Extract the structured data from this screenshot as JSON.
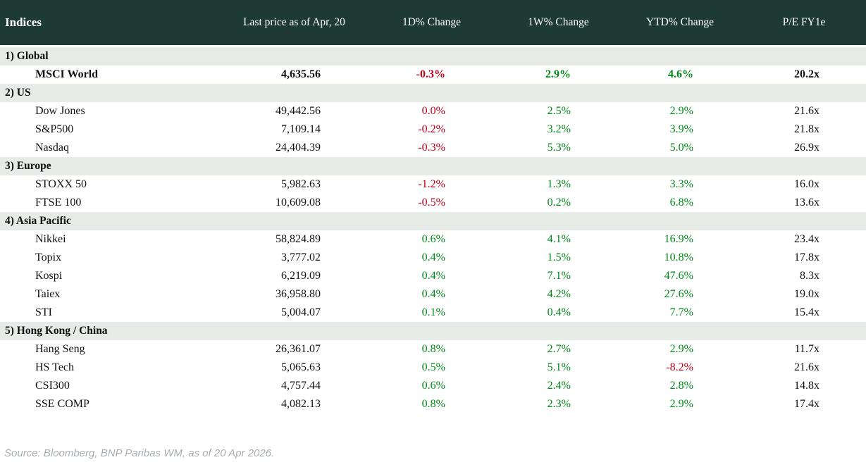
{
  "chart_data": {
    "type": "table",
    "title": "Indices",
    "columns": [
      "Indices",
      "Last price as of Apr, 20",
      "1D% Change",
      "1W% Change",
      "YTD% Change",
      "P/E FY1e"
    ],
    "sections": [
      {
        "label": "1) Global",
        "rows": [
          {
            "name": "MSCI World",
            "price": "4,635.56",
            "d1": "-0.3%",
            "w1": "2.9%",
            "ytd": "4.6%",
            "pe": "20.2x",
            "bold": true
          }
        ]
      },
      {
        "label": "2) US",
        "rows": [
          {
            "name": "Dow Jones",
            "price": "49,442.56",
            "d1": "0.0%",
            "w1": "2.5%",
            "ytd": "2.9%",
            "pe": "21.6x",
            "bold": false
          },
          {
            "name": "S&P500",
            "price": "7,109.14",
            "d1": "-0.2%",
            "w1": "3.2%",
            "ytd": "3.9%",
            "pe": "21.8x",
            "bold": false
          },
          {
            "name": "Nasdaq",
            "price": "24,404.39",
            "d1": "-0.3%",
            "w1": "5.3%",
            "ytd": "5.0%",
            "pe": "26.9x",
            "bold": false
          }
        ]
      },
      {
        "label": "3) Europe",
        "rows": [
          {
            "name": "STOXX 50",
            "price": "5,982.63",
            "d1": "-1.2%",
            "w1": "1.3%",
            "ytd": "3.3%",
            "pe": "16.0x",
            "bold": false
          },
          {
            "name": "FTSE 100",
            "price": "10,609.08",
            "d1": "-0.5%",
            "w1": "0.2%",
            "ytd": "6.8%",
            "pe": "13.6x",
            "bold": false
          }
        ]
      },
      {
        "label": "4) Asia Pacific",
        "rows": [
          {
            "name": "Nikkei",
            "price": "58,824.89",
            "d1": "0.6%",
            "w1": "4.1%",
            "ytd": "16.9%",
            "pe": "23.4x",
            "bold": false
          },
          {
            "name": "Topix",
            "price": "3,777.02",
            "d1": "0.4%",
            "w1": "1.5%",
            "ytd": "10.8%",
            "pe": "17.8x",
            "bold": false
          },
          {
            "name": "Kospi",
            "price": "6,219.09",
            "d1": "0.4%",
            "w1": "7.1%",
            "ytd": "47.6%",
            "pe": "8.3x",
            "bold": false
          },
          {
            "name": "Taiex",
            "price": "36,958.80",
            "d1": "0.4%",
            "w1": "4.2%",
            "ytd": "27.6%",
            "pe": "19.0x",
            "bold": false
          },
          {
            "name": "STI",
            "price": "5,004.07",
            "d1": "0.1%",
            "w1": "0.4%",
            "ytd": "7.7%",
            "pe": "15.4x",
            "bold": false
          }
        ]
      },
      {
        "label": "5) Hong Kong / China",
        "rows": [
          {
            "name": "Hang Seng",
            "price": "26,361.07",
            "d1": "0.8%",
            "w1": "2.7%",
            "ytd": "2.9%",
            "pe": "11.7x",
            "bold": false
          },
          {
            "name": "HS Tech",
            "price": "5,065.63",
            "d1": "0.5%",
            "w1": "5.1%",
            "ytd": "-8.2%",
            "pe": "21.6x",
            "bold": false
          },
          {
            "name": "CSI300",
            "price": "4,757.44",
            "d1": "0.6%",
            "w1": "2.4%",
            "ytd": "2.8%",
            "pe": "14.8x",
            "bold": false
          },
          {
            "name": "SSE COMP",
            "price": "4,082.13",
            "d1": "0.8%",
            "w1": "2.3%",
            "ytd": "2.9%",
            "pe": "17.4x",
            "bold": false
          }
        ]
      }
    ],
    "source": "Source: Bloomberg, BNP Paribas WM, as of 20 Apr 2026.",
    "layout": {
      "legend": "none",
      "grid": "off",
      "negative_and_zero_change_color": "red",
      "positive_change_color": "green"
    }
  },
  "colors": {
    "header_bg": "#1e3a34",
    "section_bg": "#e7ebe8",
    "pos_green": "#008a17",
    "neg_red": "#c00018",
    "text_black": "#111111",
    "header_text": "#ffffff",
    "source_gray": "#a9aeb2"
  }
}
